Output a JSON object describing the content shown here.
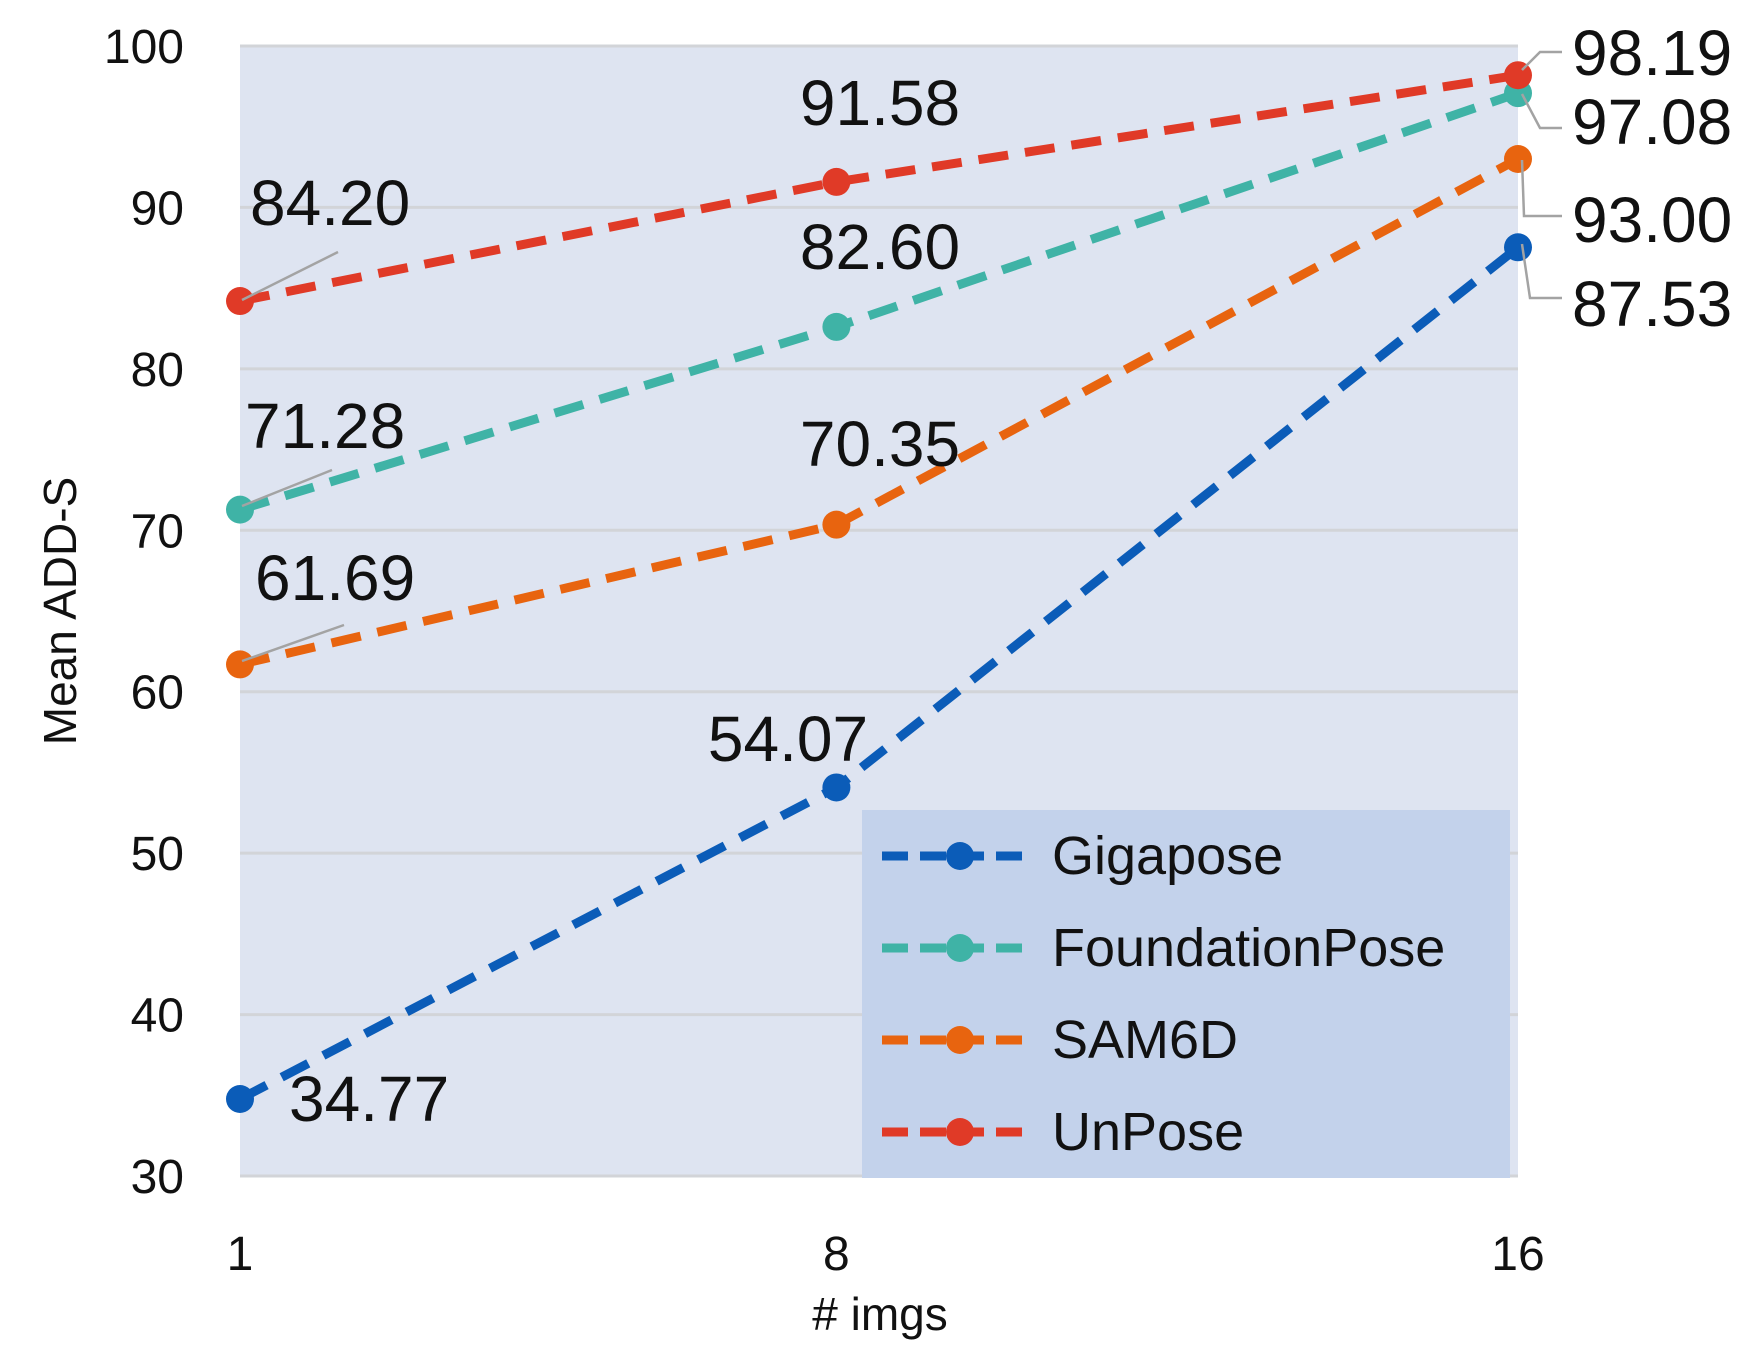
{
  "chart_data": {
    "type": "line",
    "title": "",
    "xlabel": "# imgs",
    "ylabel": "Mean ADD-S",
    "x": [
      1,
      8,
      16
    ],
    "x_tick_labels": [
      "1",
      "8",
      "16"
    ],
    "ylim": [
      30,
      100
    ],
    "y_ticks": [
      30,
      40,
      50,
      60,
      70,
      80,
      90,
      100
    ],
    "grid": true,
    "legend_position": "bottom-right",
    "series": [
      {
        "name": "Gigapose",
        "color": "#0B5CB8",
        "values": [
          34.77,
          54.07,
          87.53
        ],
        "labels": [
          "34.77",
          "54.07",
          "87.53"
        ]
      },
      {
        "name": "FoundationPose",
        "color": "#3FB3A6",
        "values": [
          71.28,
          82.6,
          97.08
        ],
        "labels": [
          "71.28",
          "82.60",
          "97.08"
        ]
      },
      {
        "name": "SAM6D",
        "color": "#E8640F",
        "values": [
          61.69,
          70.35,
          93.0
        ],
        "labels": [
          "61.69",
          "70.35",
          "93.00"
        ]
      },
      {
        "name": "UnPose",
        "color": "#E03A27",
        "values": [
          84.2,
          91.58,
          98.19
        ],
        "labels": [
          "84.20",
          "91.58",
          "98.19"
        ]
      }
    ]
  }
}
